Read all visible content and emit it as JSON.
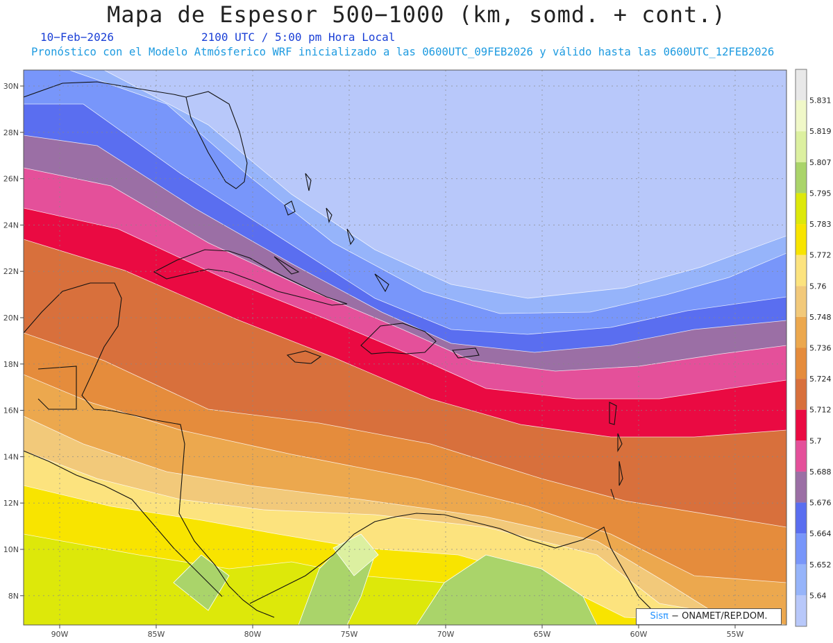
{
  "header": {
    "title": "Mapa de Espesor 500−1000 (km, somd. + cont.)",
    "date": "10−Feb−2026",
    "time": "2100 UTC / 5:00 pm Hora Local",
    "model_line": "Pronóstico con el Modelo Atmósferico WRF inicializado a las 0600UTC_09FEB2026 y válido hasta las  0600UTC_12FEB2026"
  },
  "map": {
    "lat_labels": [
      "30N",
      "28N",
      "26N",
      "24N",
      "22N",
      "20N",
      "18N",
      "16N",
      "14N",
      "12N",
      "10N",
      "8N"
    ],
    "lon_labels": [
      "90W",
      "85W",
      "80W",
      "75W",
      "70W",
      "65W",
      "60W",
      "55W"
    ],
    "grid": true
  },
  "colorbar": {
    "labels": [
      "5.64",
      "5.652",
      "5.664",
      "5.676",
      "5.688",
      "5.7",
      "5.712",
      "5.724",
      "5.736",
      "5.748",
      "5.76",
      "5.772",
      "5.783",
      "5.795",
      "5.807",
      "5.819",
      "5.831"
    ],
    "colors": [
      "#b8c8fa",
      "#96b4fa",
      "#7896fa",
      "#5a6ef0",
      "#9b6fa5",
      "#e4509a",
      "#ea0a42",
      "#d8703c",
      "#e58c3c",
      "#eca84e",
      "#f2c97a",
      "#fce37e",
      "#f8e400",
      "#dde80a",
      "#aad46a",
      "#dcf0a0",
      "#f0f8c8",
      "#e8e8e8"
    ]
  },
  "credit": {
    "brand": "Sisπ",
    "text": " − ONAMET/REP.DOM."
  }
}
